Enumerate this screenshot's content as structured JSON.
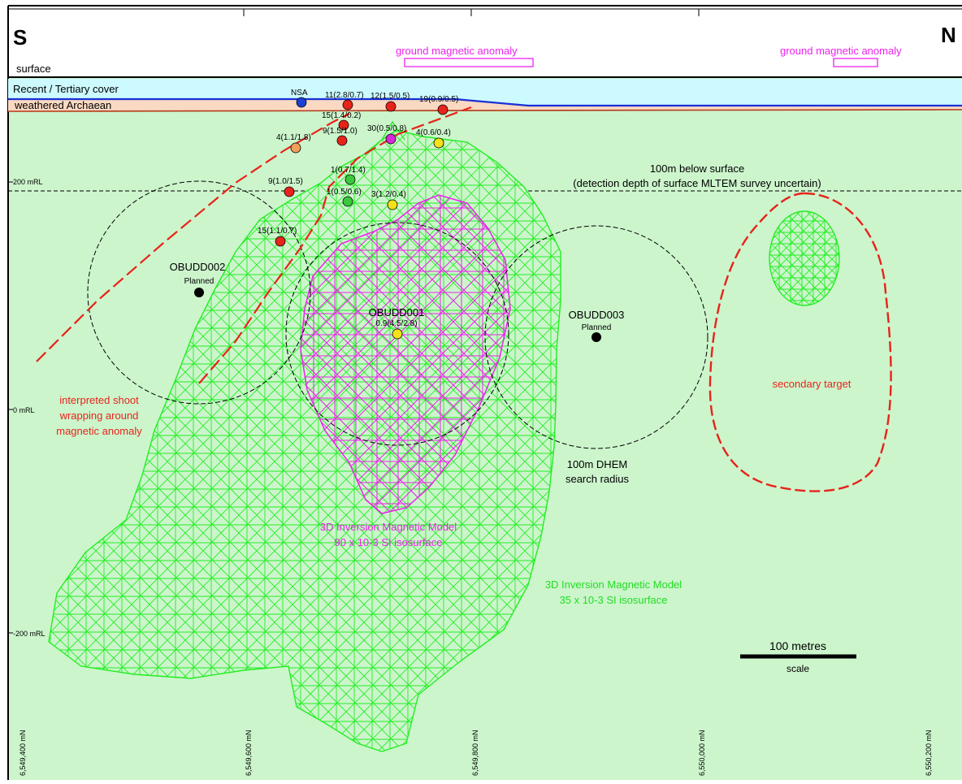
{
  "header": {
    "left_label": "S",
    "right_label": "N",
    "surface_label": "surface",
    "anomaly_label_1": "ground magnetic anomaly",
    "anomaly_label_2": "ground magnetic anomaly"
  },
  "layers": {
    "cover": "Recent / Tertiary cover",
    "weathered": "weathered Archaean"
  },
  "depth_line": {
    "line1": "100m below surface",
    "line2": "(detection depth of surface MLTEM survey uncertain)"
  },
  "rl_labels": [
    "200 mRL",
    "0 mRL",
    "-200 mRL"
  ],
  "northings": [
    "6,549,400 mN",
    "6,549,600 mN",
    "6,549,800 mN",
    "6,550,000 mN",
    "6,550,200 mN"
  ],
  "drillholes": [
    {
      "label": "NSA",
      "color": "#1a3fd6"
    },
    {
      "label": "11(2.8/0.7)",
      "color": "#e8231a"
    },
    {
      "label": "12(1.5/0.5)",
      "color": "#e8231a"
    },
    {
      "label": "19(0.9/0.5)",
      "color": "#e8231a"
    },
    {
      "label": "15(1.4/0.2)",
      "color": "#e8231a"
    },
    {
      "label": "9(1.5/1.0)",
      "color": "#e8231a"
    },
    {
      "label": "30(0.5/0.8)",
      "color": "#d62ad6"
    },
    {
      "label": "4(0.6/0.4)",
      "color": "#f5e11a"
    },
    {
      "label": "4(1.1/1.8)",
      "color": "#f0a05a"
    },
    {
      "label": "1(0.7/1.4)",
      "color": "#3cc83c"
    },
    {
      "label": "9(1.0/1.5)",
      "color": "#e8231a"
    },
    {
      "label": "1(0.5/0.6)",
      "color": "#3cc83c"
    },
    {
      "label": "3(1.2/0.4)",
      "color": "#f5e11a"
    },
    {
      "label": "15(1.1/0.7)",
      "color": "#e8231a"
    }
  ],
  "targets": {
    "obudd001": {
      "name": "OBUDD001",
      "value": "0.9(4.5/2.8)"
    },
    "obudd002": {
      "name": "OBUDD002",
      "status": "Planned"
    },
    "obudd003": {
      "name": "OBUDD003",
      "status": "Planned"
    }
  },
  "annotations": {
    "shoot": [
      "interpreted shoot",
      "wrapping around",
      "magnetic anomaly"
    ],
    "secondary": "secondary target",
    "dhem": [
      "100m DHEM",
      "search radius"
    ],
    "model_90": [
      "3D Inversion Magnetic Model",
      "90 x 10-3 SI isosurface"
    ],
    "model_35": [
      "3D Inversion Magnetic Model",
      "35 x 10-3 SI isosurface"
    ]
  },
  "scale": {
    "label": "100 metres",
    "caption": "scale"
  },
  "colors": {
    "background": "#ccf5cc",
    "cover": "#ccfaff",
    "weathered": "#fad9c2",
    "mesh_green": "#22ee22",
    "mesh_magenta": "#ee22ee",
    "red_dash": "#e8231a",
    "annot_magenta": "#ee22ee",
    "annot_green": "#22dd22"
  }
}
